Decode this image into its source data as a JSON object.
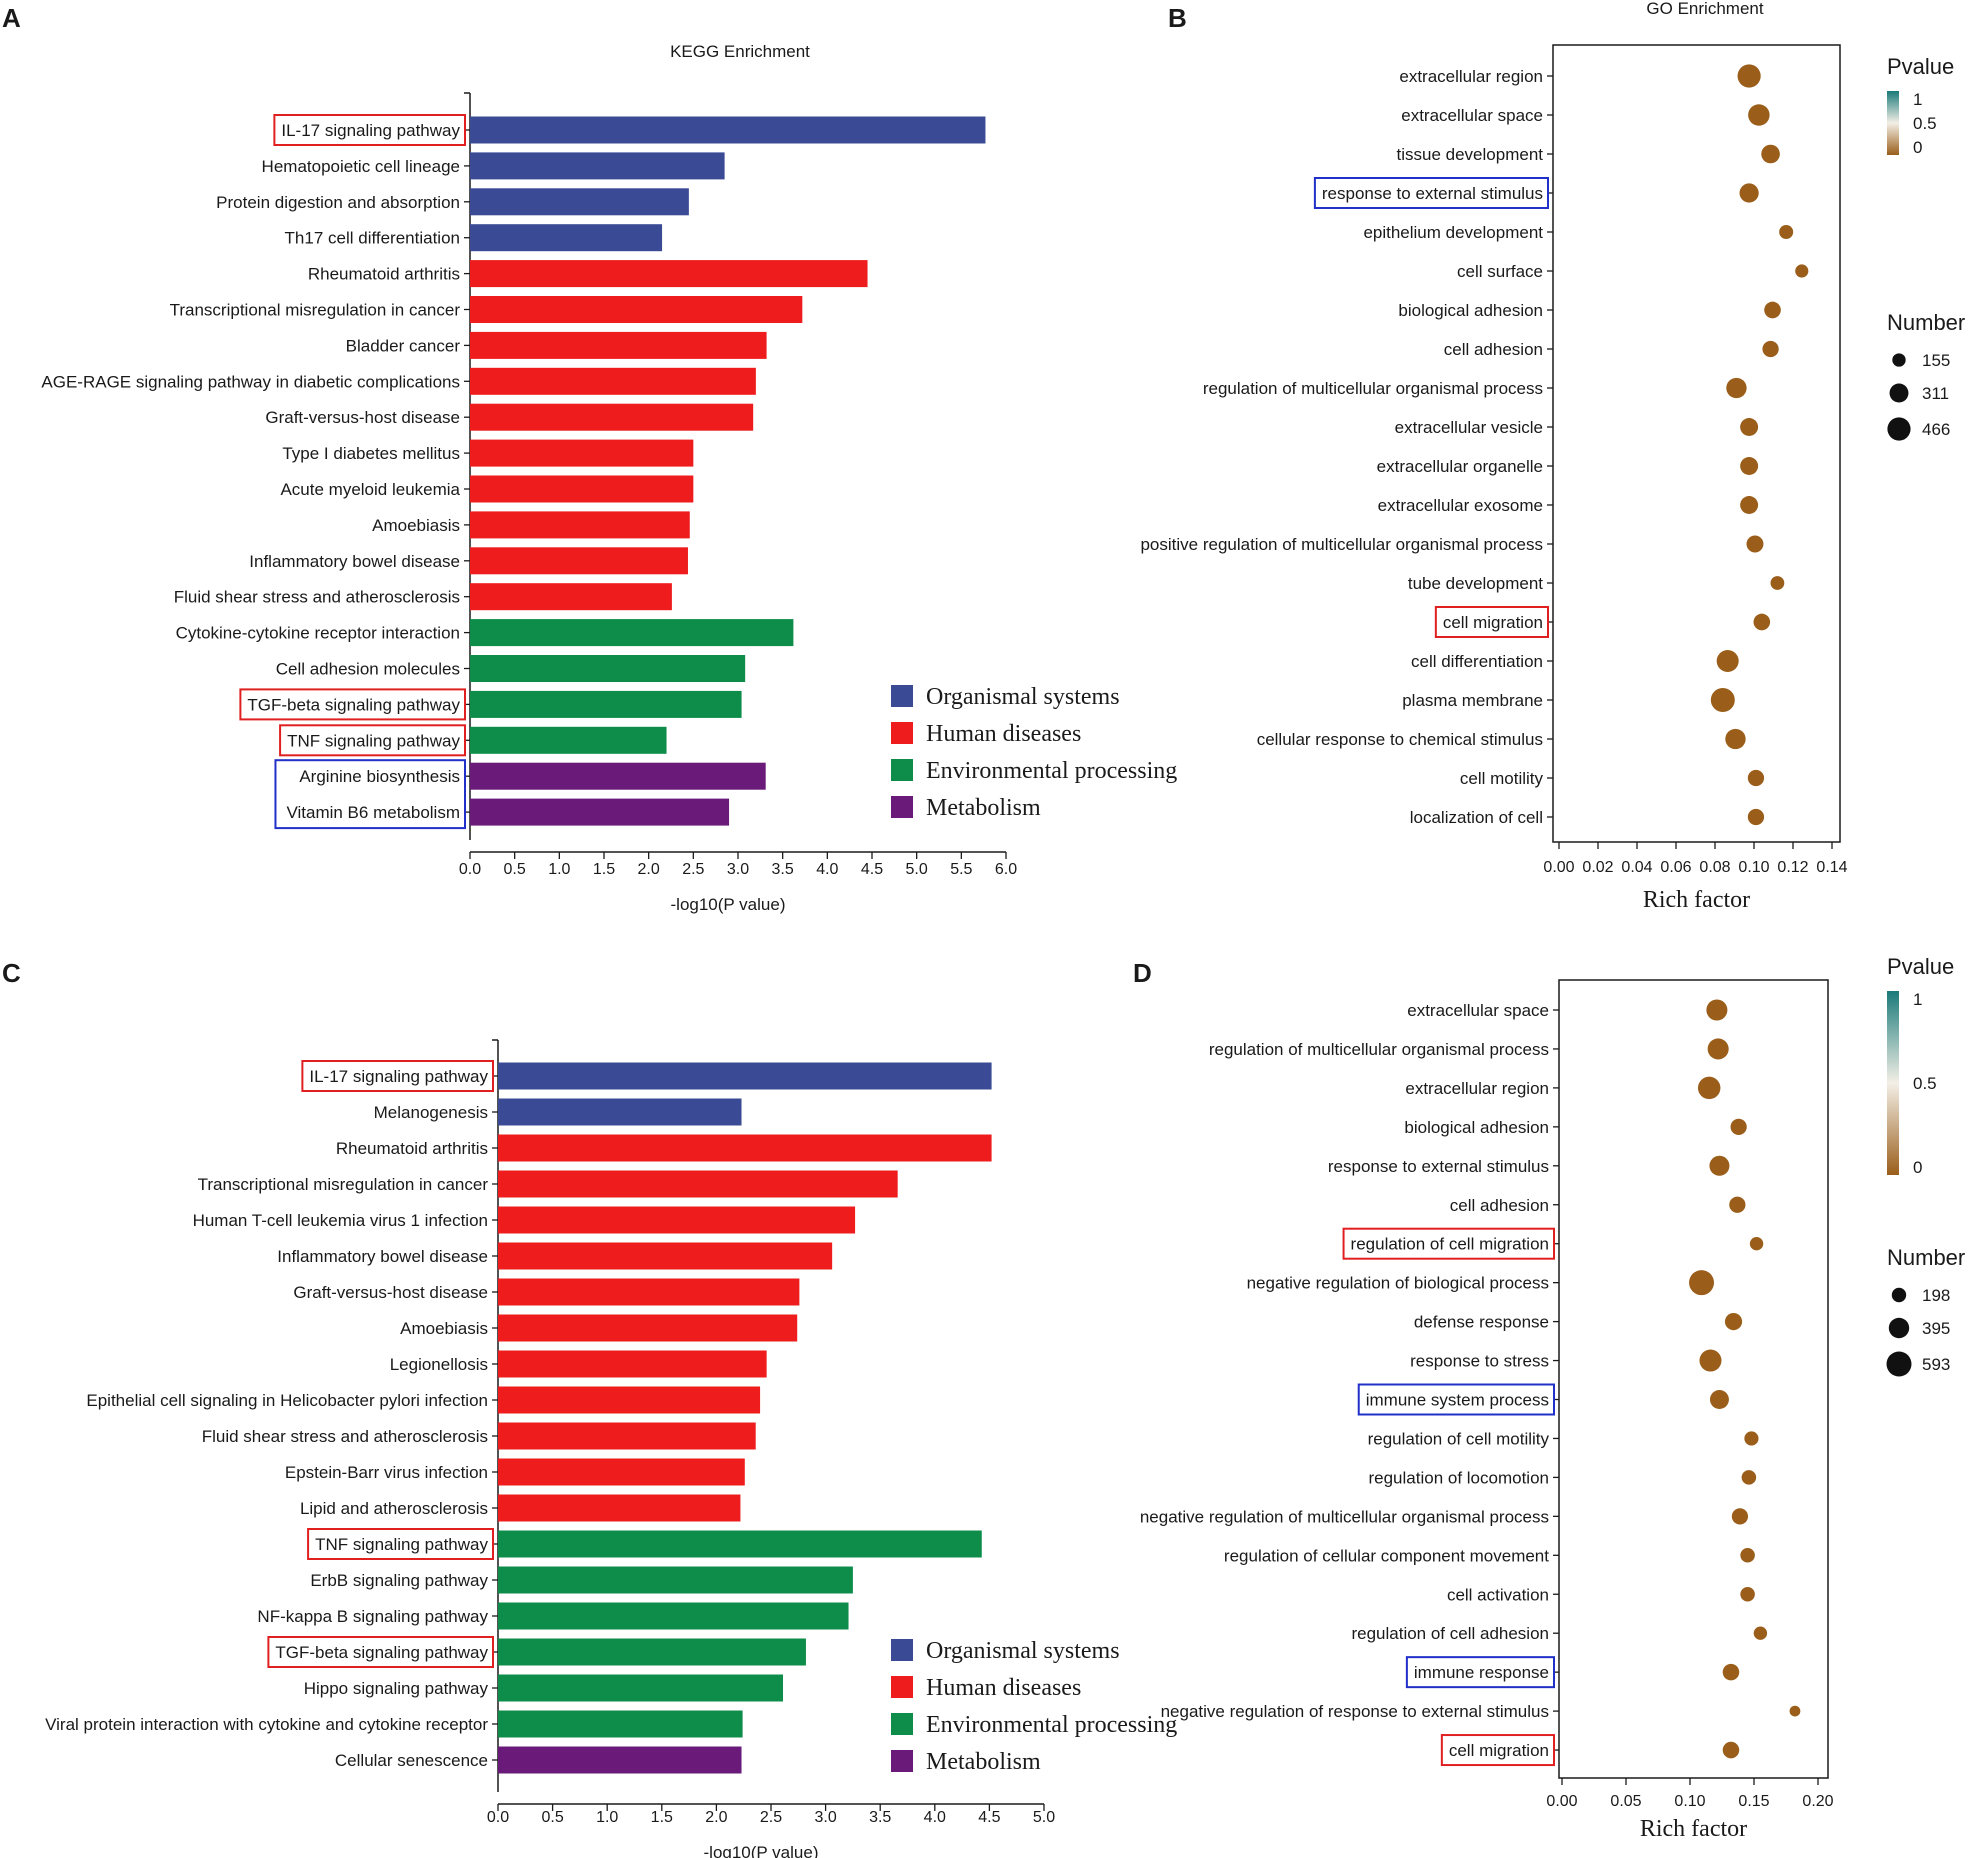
{
  "chart_data": [
    {
      "panel_letter": "A",
      "type": "bar",
      "orientation": "horizontal",
      "title": "KEGG Enrichment",
      "xlabel": "-log10(P value)",
      "xlim": [
        0,
        6.0
      ],
      "xticks": [
        "0.0",
        "0.5",
        "1.0",
        "1.5",
        "2.0",
        "2.5",
        "3.0",
        "3.5",
        "4.0",
        "4.5",
        "5.0",
        "5.5",
        "6.0"
      ],
      "categories": [
        "IL-17 signaling pathway",
        "Hematopoietic cell lineage",
        "Protein digestion and absorption",
        "Th17 cell differentiation",
        "Rheumatoid arthritis",
        "Transcriptional misregulation in cancer",
        "Bladder cancer",
        "AGE-RAGE signaling pathway in diabetic complications",
        "Graft-versus-host disease",
        "Type I diabetes mellitus",
        "Acute myeloid leukemia",
        "Amoebiasis",
        "Inflammatory bowel disease",
        "Fluid shear stress and atherosclerosis",
        "Cytokine-cytokine receptor interaction",
        "Cell adhesion molecules",
        "TGF-beta signaling pathway",
        "TNF signaling pathway",
        "Arginine biosynthesis",
        "Vitamin B6 metabolism"
      ],
      "values": [
        5.77,
        2.85,
        2.45,
        2.15,
        4.45,
        3.72,
        3.32,
        3.2,
        3.17,
        2.5,
        2.5,
        2.46,
        2.44,
        2.26,
        3.62,
        3.08,
        3.04,
        2.2,
        3.31,
        2.9
      ],
      "groups": [
        0,
        0,
        0,
        0,
        1,
        1,
        1,
        1,
        1,
        1,
        1,
        1,
        1,
        1,
        2,
        2,
        2,
        2,
        3,
        3
      ],
      "highlight_red": [
        0,
        16,
        17
      ],
      "highlight_blue_groups": [
        [
          18,
          19
        ]
      ],
      "legend": [
        "Organismal systems",
        "Human diseases",
        "Environmental processing",
        "Metabolism"
      ],
      "colors": [
        "#3a4a95",
        "#ee1c1c",
        "#0d8c4a",
        "#6a1b7a"
      ]
    },
    {
      "panel_letter": "B",
      "type": "scatter",
      "title": "GO Enrichment",
      "xlabel": "Rich factor",
      "xlim": [
        0,
        0.14
      ],
      "xticks": [
        "0.00",
        "0.02",
        "0.04",
        "0.06",
        "0.08",
        "0.10",
        "0.12",
        "0.14"
      ],
      "categories": [
        "extracellular region",
        "extracellular space",
        "tissue development",
        "response to external stimulus",
        "epithelium development",
        "cell surface",
        "biological adhesion",
        "cell adhesion",
        "regulation of multicellular organismal process",
        "extracellular vesicle",
        "extracellular organelle",
        "extracellular exosome",
        "positive regulation of multicellular organismal process",
        "tube development",
        "cell migration",
        "cell differentiation",
        "plasma membrane",
        "cellular response to chemical stimulus",
        "cell motility",
        "localization of cell"
      ],
      "x": [
        0.0975,
        0.1025,
        0.1085,
        0.0975,
        0.1165,
        0.1245,
        0.1095,
        0.1085,
        0.091,
        0.0975,
        0.0975,
        0.0975,
        0.1005,
        0.112,
        0.104,
        0.0865,
        0.084,
        0.0905,
        0.101,
        0.101
      ],
      "number": [
        466,
        400,
        300,
        320,
        170,
        150,
        240,
        230,
        360,
        280,
        280,
        280,
        250,
        165,
        240,
        420,
        500,
        360,
        230,
        230
      ],
      "pvalue": [
        0,
        0,
        0,
        0,
        0,
        0,
        0,
        0,
        0,
        0,
        0,
        0,
        0,
        0,
        0,
        0,
        0,
        0,
        0,
        0
      ],
      "highlight_red": [
        14
      ],
      "highlight_blue": [
        3
      ],
      "pvalue_legend_title": "Pvalue",
      "pvalue_ticks": [
        "1",
        "0.5",
        "0"
      ],
      "number_legend_title": "Number",
      "number_legend": [
        "155",
        "311",
        "466"
      ],
      "number_legend_values": [
        155,
        311,
        466
      ]
    },
    {
      "panel_letter": "C",
      "type": "bar",
      "orientation": "horizontal",
      "title": "",
      "xlabel": "-log10(P value)",
      "xlim": [
        0,
        5.0
      ],
      "xticks": [
        "0.0",
        "0.5",
        "1.0",
        "1.5",
        "2.0",
        "2.5",
        "3.0",
        "3.5",
        "4.0",
        "4.5",
        "5.0"
      ],
      "categories": [
        "IL-17 signaling pathway",
        "Melanogenesis",
        "Rheumatoid arthritis",
        "Transcriptional misregulation in cancer",
        "Human T-cell leukemia virus 1 infection",
        "Inflammatory bowel disease",
        "Graft-versus-host disease",
        "Amoebiasis",
        "Legionellosis",
        "Epithelial cell signaling in Helicobacter pylori infection",
        "Fluid shear stress and atherosclerosis",
        "Epstein-Barr virus infection",
        "Lipid and atherosclerosis",
        "TNF signaling pathway",
        "ErbB signaling pathway",
        "NF-kappa B signaling pathway",
        "TGF-beta signaling pathway",
        "Hippo signaling pathway",
        "Viral protein interaction with cytokine and cytokine receptor",
        "Cellular senescence"
      ],
      "values": [
        4.52,
        2.23,
        4.52,
        3.66,
        3.27,
        3.06,
        2.76,
        2.74,
        2.46,
        2.4,
        2.36,
        2.26,
        2.22,
        4.43,
        3.25,
        3.21,
        2.82,
        2.61,
        2.24,
        2.23
      ],
      "groups": [
        0,
        0,
        1,
        1,
        1,
        1,
        1,
        1,
        1,
        1,
        1,
        1,
        1,
        2,
        2,
        2,
        2,
        2,
        2,
        3
      ],
      "highlight_red": [
        0,
        13,
        16
      ],
      "highlight_blue_groups": [],
      "legend": [
        "Organismal systems",
        "Human diseases",
        "Environmental processing",
        "Metabolism"
      ],
      "colors": [
        "#3a4a95",
        "#ee1c1c",
        "#0d8c4a",
        "#6a1b7a"
      ]
    },
    {
      "panel_letter": "D",
      "type": "scatter",
      "title": "",
      "xlabel": "Rich factor",
      "xlim": [
        0,
        0.2
      ],
      "xticks": [
        "0.00",
        "0.05",
        "0.10",
        "0.15",
        "0.20"
      ],
      "categories": [
        "extracellular space",
        "regulation of multicellular organismal process",
        "extracellular region",
        "biological adhesion",
        "response to external stimulus",
        "cell adhesion",
        "regulation of cell migration",
        "negative regulation of biological process",
        "defense response",
        "response to stress",
        "immune system process",
        "regulation of cell motility",
        "regulation of locomotion",
        "negative regulation of multicellular organismal process",
        "regulation of cellular component movement",
        "cell activation",
        "regulation of cell adhesion",
        "immune response",
        "negative regulation of response to external stimulus",
        "cell migration"
      ],
      "x": [
        0.121,
        0.122,
        0.115,
        0.138,
        0.123,
        0.137,
        0.152,
        0.109,
        0.134,
        0.116,
        0.123,
        0.148,
        0.146,
        0.139,
        0.145,
        0.145,
        0.155,
        0.132,
        0.182,
        0.132
      ],
      "number": [
        420,
        420,
        480,
        250,
        380,
        250,
        170,
        593,
        280,
        460,
        340,
        190,
        200,
        250,
        200,
        200,
        170,
        260,
        110,
        260
      ],
      "pvalue": [
        0,
        0,
        0,
        0,
        0,
        0,
        0,
        0,
        0,
        0,
        0,
        0,
        0,
        0,
        0,
        0,
        0,
        0,
        0,
        0
      ],
      "highlight_red": [
        6,
        19
      ],
      "highlight_blue": [
        10,
        17
      ],
      "pvalue_legend_title": "Pvalue",
      "pvalue_ticks": [
        "1",
        "0.5",
        "0"
      ],
      "number_legend_title": "Number",
      "number_legend": [
        "198",
        "395",
        "593"
      ],
      "number_legend_values": [
        198,
        395,
        593
      ]
    }
  ]
}
